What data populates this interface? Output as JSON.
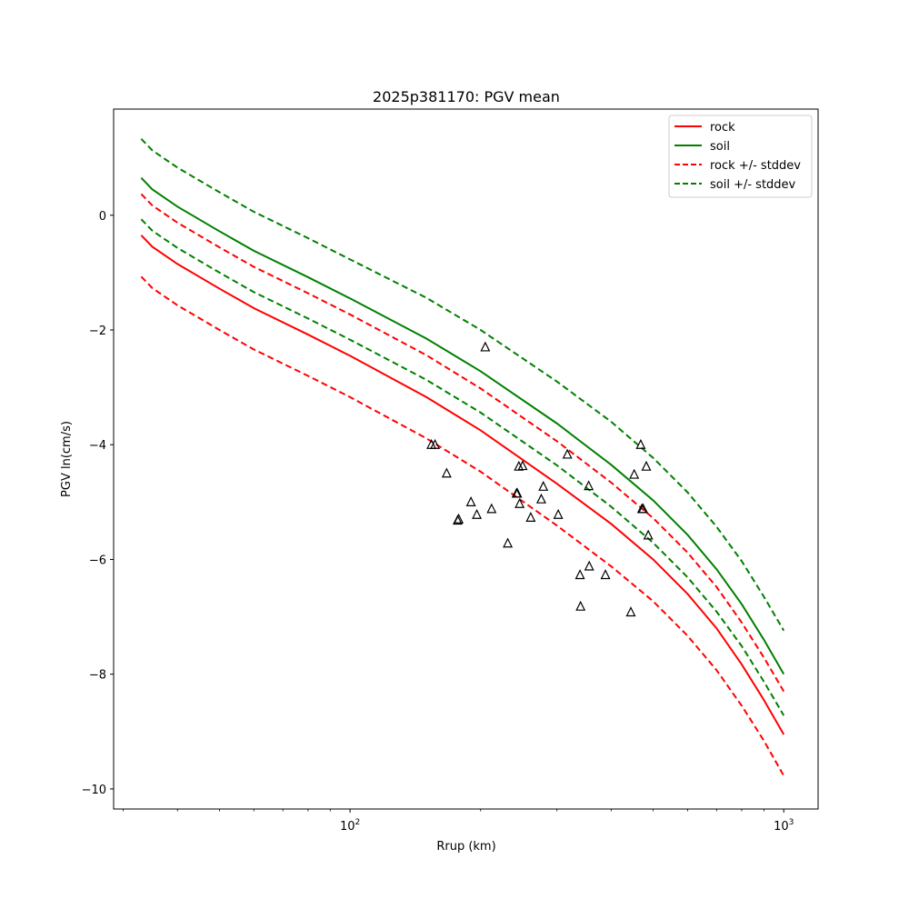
{
  "chart_data": {
    "type": "line",
    "title": "2025p381170: PGV mean",
    "xlabel": "Rrup (km)",
    "ylabel": "PGV ln(cm/s)",
    "xscale": "log",
    "xlim": [
      28.5,
      1200
    ],
    "ylim": [
      -10.35,
      1.85
    ],
    "grid": false,
    "legend_position": "top-right",
    "xticks": [
      {
        "value": 100,
        "base": "10",
        "exp": "2"
      },
      {
        "value": 1000,
        "base": "10",
        "exp": "3"
      }
    ],
    "yticks": [
      {
        "value": 0,
        "label": "0"
      },
      {
        "value": -2,
        "label": "−2"
      },
      {
        "value": -4,
        "label": "−4"
      },
      {
        "value": -6,
        "label": "−6"
      },
      {
        "value": -8,
        "label": "−8"
      },
      {
        "value": -10,
        "label": "−10"
      }
    ],
    "series": [
      {
        "name": "rock",
        "color": "#ff0000",
        "dash": "solid",
        "x": [
          33,
          35,
          40,
          50,
          60,
          80,
          100,
          150,
          200,
          300,
          400,
          500,
          600,
          700,
          800,
          900,
          1000
        ],
        "y": [
          -0.35,
          -0.55,
          -0.85,
          -1.28,
          -1.62,
          -2.08,
          -2.45,
          -3.17,
          -3.75,
          -4.68,
          -5.38,
          -6.0,
          -6.6,
          -7.2,
          -7.83,
          -8.45,
          -9.05
        ]
      },
      {
        "name": "soil",
        "color": "#008000",
        "dash": "solid",
        "x": [
          33,
          35,
          40,
          50,
          60,
          80,
          100,
          150,
          200,
          300,
          400,
          500,
          600,
          700,
          800,
          900,
          1000
        ],
        "y": [
          0.65,
          0.45,
          0.15,
          -0.28,
          -0.62,
          -1.08,
          -1.45,
          -2.15,
          -2.72,
          -3.63,
          -4.35,
          -4.97,
          -5.57,
          -6.17,
          -6.78,
          -7.4,
          -8.0
        ]
      },
      {
        "name": "rock +/- stddev",
        "color": "#ff0000",
        "dash": "dashed",
        "x": [
          33,
          35,
          40,
          50,
          60,
          80,
          100,
          150,
          200,
          300,
          400,
          500,
          600,
          700,
          800,
          900,
          1000
        ],
        "y": [
          0.37,
          0.17,
          -0.13,
          -0.56,
          -0.9,
          -1.36,
          -1.73,
          -2.44,
          -3.02,
          -3.94,
          -4.66,
          -5.28,
          -5.88,
          -6.48,
          -7.1,
          -7.71,
          -8.3
        ]
      },
      {
        "name": "rock +/- stddev",
        "color": "#ff0000",
        "dash": "dashed",
        "legend": false,
        "x": [
          33,
          35,
          40,
          50,
          60,
          80,
          100,
          150,
          200,
          300,
          400,
          500,
          600,
          700,
          800,
          900,
          1000
        ],
        "y": [
          -1.07,
          -1.27,
          -1.57,
          -2.0,
          -2.34,
          -2.8,
          -3.17,
          -3.89,
          -4.47,
          -5.41,
          -6.12,
          -6.73,
          -7.33,
          -7.93,
          -8.55,
          -9.16,
          -9.77
        ]
      },
      {
        "name": "soil +/- stddev",
        "color": "#008000",
        "dash": "dashed",
        "x": [
          33,
          35,
          40,
          50,
          60,
          80,
          100,
          150,
          200,
          300,
          400,
          500,
          600,
          700,
          800,
          900,
          1000
        ],
        "y": [
          1.33,
          1.13,
          0.83,
          0.4,
          0.06,
          -0.4,
          -0.77,
          -1.44,
          -2.0,
          -2.9,
          -3.6,
          -4.23,
          -4.83,
          -5.43,
          -6.03,
          -6.65,
          -7.24
        ]
      },
      {
        "name": "soil +/- stddev",
        "color": "#008000",
        "dash": "dashed",
        "legend": false,
        "x": [
          33,
          35,
          40,
          50,
          60,
          80,
          100,
          150,
          200,
          300,
          400,
          500,
          600,
          700,
          800,
          900,
          1000
        ],
        "y": [
          -0.07,
          -0.27,
          -0.57,
          -1.0,
          -1.34,
          -1.8,
          -2.17,
          -2.87,
          -3.44,
          -4.36,
          -5.08,
          -5.71,
          -6.31,
          -6.91,
          -7.51,
          -8.13,
          -8.72
        ]
      }
    ],
    "observations": {
      "marker": "triangle",
      "x": [
        154,
        157,
        167,
        177,
        178,
        190,
        196,
        212,
        205,
        231,
        243,
        245,
        246,
        250,
        261,
        242,
        276,
        279,
        302,
        317,
        355,
        339,
        340,
        356,
        388,
        444,
        452,
        468,
        471,
        474,
        482,
        487
      ],
      "y": [
        -4.0,
        -4.0,
        -4.5,
        -5.32,
        -5.3,
        -5.0,
        -5.22,
        -5.12,
        -2.3,
        -5.72,
        -4.85,
        -4.38,
        -5.03,
        -4.37,
        -5.27,
        -4.85,
        -4.95,
        -4.73,
        -5.22,
        -4.17,
        -4.72,
        -6.27,
        -6.82,
        -6.12,
        -6.27,
        -6.92,
        -4.52,
        -4.0,
        -5.12,
        -5.12,
        -4.38,
        -5.58
      ]
    }
  }
}
